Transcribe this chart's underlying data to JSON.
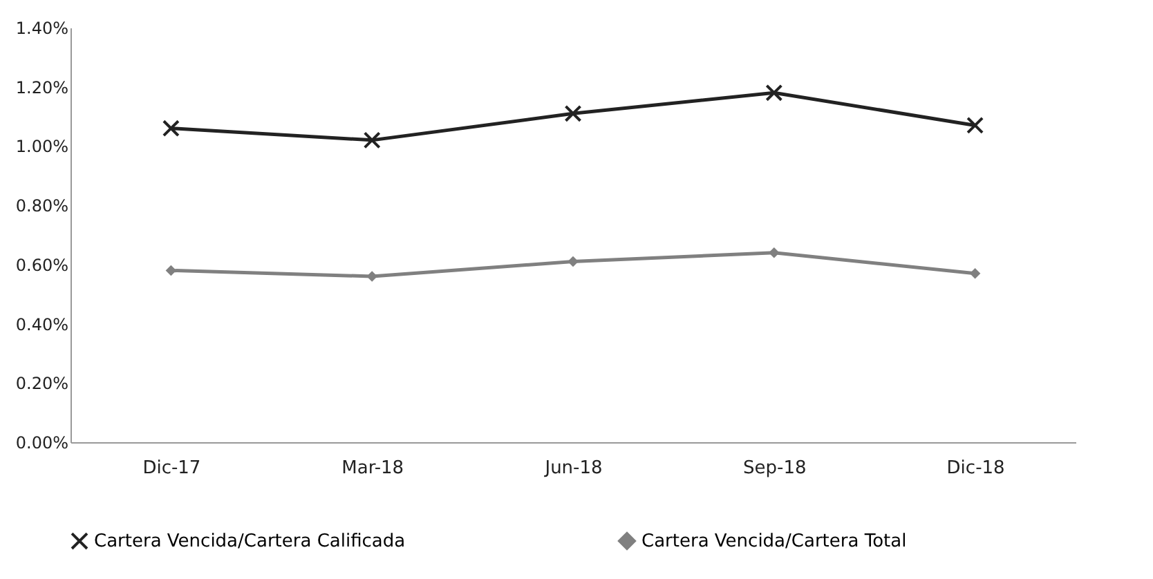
{
  "chart_data": {
    "type": "line",
    "categories": [
      "Dic-17",
      "Mar-18",
      "Jun-18",
      "Sep-18",
      "Dic-18"
    ],
    "series": [
      {
        "name": "Cartera Vencida/Cartera Calificada",
        "color": "#222222",
        "marker": "cross",
        "values": [
          1.06,
          1.02,
          1.11,
          1.18,
          1.07
        ]
      },
      {
        "name": "Cartera Vencida/Cartera Total",
        "color": "#808080",
        "marker": "diamond",
        "values": [
          0.58,
          0.56,
          0.61,
          0.64,
          0.57
        ]
      }
    ],
    "ylim": [
      0,
      1.4
    ],
    "yticks": [
      {
        "value": 0,
        "label": "0.00%"
      },
      {
        "value": 0.2,
        "label": "0.20%"
      },
      {
        "value": 0.4,
        "label": "0.40%"
      },
      {
        "value": 0.6,
        "label": "0.60%"
      },
      {
        "value": 0.8,
        "label": "0.80%"
      },
      {
        "value": 1.0,
        "label": "1.00%"
      },
      {
        "value": 1.2,
        "label": "1.20%"
      },
      {
        "value": 1.4,
        "label": "1.40%"
      }
    ],
    "grid": false,
    "legend": "bottom"
  }
}
